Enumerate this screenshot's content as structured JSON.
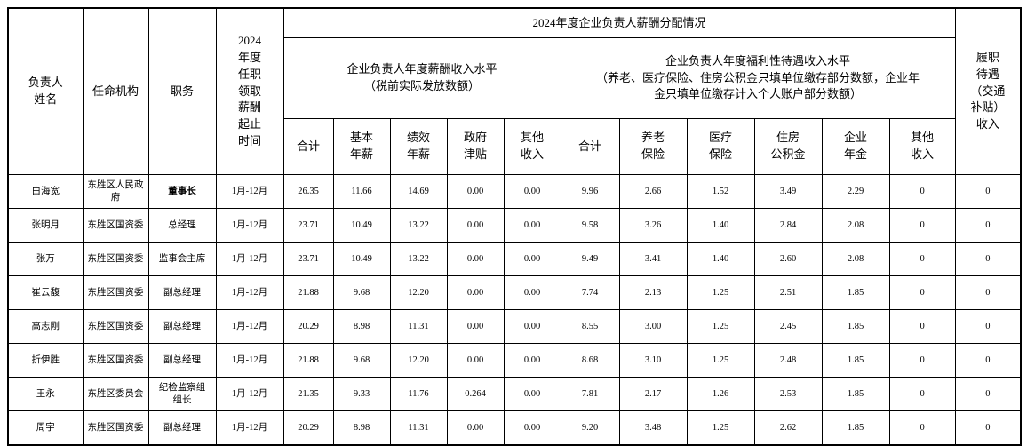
{
  "table": {
    "group_title": "2024年度企业负责人薪酬分配情况",
    "left_headers": {
      "name": "负责人\n姓名",
      "agency": "任命机构",
      "position": "职务",
      "period": "2024\n年度\n任职\n领取\n薪酬\n起止\n时间"
    },
    "right_header": "履职\n待遇\n（交通\n补贴）\n收入",
    "sub_groups": {
      "salary": "企业负责人年度薪酬收入水平\n（税前实际发放数额）",
      "welfare": "企业负责人年度福利性待遇收入水平\n（养老、医疗保险、住房公积金只填单位缴存部分数额，企业年\n金只填单位缴存计入个人账户部分数额）"
    },
    "columns": [
      "合计",
      "基本\n年薪",
      "绩效\n年薪",
      "政府\n津贴",
      "其他\n收入",
      "合计",
      "养老\n保险",
      "医疗\n保险",
      "住房\n公积金",
      "企业\n年金",
      "其他\n收入"
    ],
    "rows": [
      [
        "白海宽",
        "东胜区人民政府",
        "董事长",
        "1月-12月",
        "26.35",
        "11.66",
        "14.69",
        "0.00",
        "0.00",
        "9.96",
        "2.66",
        "1.52",
        "3.49",
        "2.29",
        "0",
        "0"
      ],
      [
        "张明月",
        "东胜区国资委",
        "总经理",
        "1月-12月",
        "23.71",
        "10.49",
        "13.22",
        "0.00",
        "0.00",
        "9.58",
        "3.26",
        "1.40",
        "2.84",
        "2.08",
        "0",
        "0"
      ],
      [
        "张万",
        "东胜区国资委",
        "监事会主席",
        "1月-12月",
        "23.71",
        "10.49",
        "13.22",
        "0.00",
        "0.00",
        "9.49",
        "3.41",
        "1.40",
        "2.60",
        "2.08",
        "0",
        "0"
      ],
      [
        "崔云馥",
        "东胜区国资委",
        "副总经理",
        "1月-12月",
        "21.88",
        "9.68",
        "12.20",
        "0.00",
        "0.00",
        "7.74",
        "2.13",
        "1.25",
        "2.51",
        "1.85",
        "0",
        "0"
      ],
      [
        "高志刚",
        "东胜区国资委",
        "副总经理",
        "1月-12月",
        "20.29",
        "8.98",
        "11.31",
        "0.00",
        "0.00",
        "8.55",
        "3.00",
        "1.25",
        "2.45",
        "1.85",
        "0",
        "0"
      ],
      [
        "折伊胜",
        "东胜区国资委",
        "副总经理",
        "1月-12月",
        "21.88",
        "9.68",
        "12.20",
        "0.00",
        "0.00",
        "8.68",
        "3.10",
        "1.25",
        "2.48",
        "1.85",
        "0",
        "0"
      ],
      [
        "王永",
        "东胜区委员会",
        "纪检监察组\n组长",
        "1月-12月",
        "21.35",
        "9.33",
        "11.76",
        "0.264",
        "0.00",
        "7.81",
        "2.17",
        "1.26",
        "2.53",
        "1.85",
        "0",
        "0"
      ],
      [
        "周宇",
        "东胜区国资委",
        "副总经理",
        "1月-12月",
        "20.29",
        "8.98",
        "11.31",
        "0.00",
        "0.00",
        "9.20",
        "3.48",
        "1.25",
        "2.62",
        "1.85",
        "0",
        "0"
      ]
    ]
  }
}
